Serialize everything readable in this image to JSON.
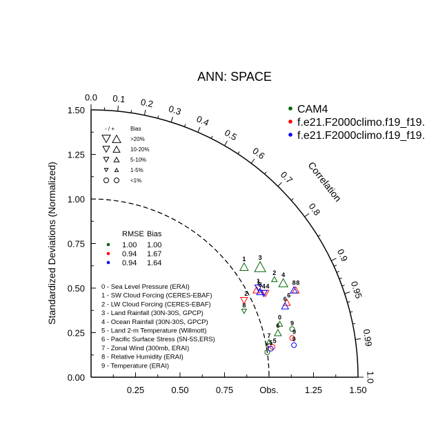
{
  "chart_data": {
    "type": "taylor-diagram",
    "title": "ANN: SPACE",
    "ylabel": "Standardized Deviations (Normalized)",
    "arc_label": "Correlation",
    "obs_label": "Obs.",
    "x_ticks": [
      "0.25",
      "0.50",
      "0.75",
      "Obs.",
      "1.25",
      "1.50"
    ],
    "x_tick_values": [
      0.25,
      0.5,
      0.75,
      1.0,
      1.25,
      1.5
    ],
    "y_ticks": [
      "0.00",
      "0.25",
      "0.50",
      "0.75",
      "1.00",
      "1.25",
      "1.50"
    ],
    "y_tick_values": [
      0,
      0.25,
      0.5,
      0.75,
      1.0,
      1.25,
      1.5
    ],
    "corr_ticks": [
      {
        "value": 0.0,
        "label": "0.0"
      },
      {
        "value": 0.1,
        "label": "0.1"
      },
      {
        "value": 0.2,
        "label": "0.2"
      },
      {
        "value": 0.3,
        "label": "0.3"
      },
      {
        "value": 0.4,
        "label": "0.4"
      },
      {
        "value": 0.5,
        "label": "0.5"
      },
      {
        "value": 0.6,
        "label": "0.6"
      },
      {
        "value": 0.7,
        "label": "0.7"
      },
      {
        "value": 0.8,
        "label": "0.8"
      },
      {
        "value": 0.9,
        "label": "0.9"
      },
      {
        "value": 0.95,
        "label": "0.95"
      },
      {
        "value": 0.99,
        "label": "0.99"
      },
      {
        "value": 1.0,
        "label": "1.0"
      }
    ],
    "corr_minor_ticks": [
      0.05,
      0.15,
      0.25,
      0.35,
      0.45,
      0.55,
      0.65,
      0.75,
      0.85,
      0.91,
      0.92,
      0.93,
      0.94,
      0.96,
      0.97,
      0.98
    ],
    "ref_arc_radius": 1.0,
    "xlim": [
      0,
      1.5
    ],
    "ylim": [
      0,
      1.5
    ],
    "series": [
      {
        "name": "CAM4",
        "color": "#006400"
      },
      {
        "name": "f.e21.F2000climo.f19_f19.",
        "color": "#ff0000"
      },
      {
        "name": "f.e21.F2000climo.f19_f19.",
        "color": "#0000ff"
      }
    ],
    "stats_table": {
      "header": [
        "RMSE",
        "Bias"
      ],
      "rows": [
        {
          "rmse": "1.00",
          "bias": "1.00"
        },
        {
          "rmse": "0.94",
          "bias": "1.67"
        },
        {
          "rmse": "0.94",
          "bias": "1.64"
        }
      ]
    },
    "bias_legend": {
      "header_sign": "- / +",
      "header_bias": "Bias",
      "rows": [
        {
          "label": ">20%",
          "shape": "triangle",
          "size": 8
        },
        {
          "label": "10-20%",
          "shape": "triangle",
          "size": 6.5
        },
        {
          "label": "5-10%",
          "shape": "triangle",
          "size": 5
        },
        {
          "label": "1-5%",
          "shape": "triangle",
          "size": 3.5
        },
        {
          "label": "<1%",
          "shape": "circle",
          "size": 3.5
        }
      ]
    },
    "variables": [
      "0 - Sea Level Pressure (ERAI)",
      "1 - SW Cloud Forcing (CERES-EBAF)",
      "2 - LW Cloud Forcing (CERES-EBAF)",
      "3 - Land Rainfall (30N-30S, GPCP)",
      "4 - Ocean Rainfall (30N-30S, GPCP)",
      "5 - Land 2-m Temperature (Willmott)",
      "6 - Pacific Surface Stress (5N-5S,ERS)",
      "7 - Zonal Wind (300mb, ERAI)",
      "8 - Relative Humidity (ERAI)",
      "9 - Temperature (ERAI)"
    ],
    "points": [
      {
        "series": 0,
        "id": "0",
        "x": 1.06,
        "y": 0.3,
        "marker": "triangle-up",
        "size": 4
      },
      {
        "series": 0,
        "id": "1",
        "x": 0.86,
        "y": 0.62,
        "marker": "triangle-up",
        "size": 6
      },
      {
        "series": 0,
        "id": "2",
        "x": 1.03,
        "y": 0.55,
        "marker": "triangle-up",
        "size": 4
      },
      {
        "series": 0,
        "id": "3",
        "x": 0.95,
        "y": 0.62,
        "marker": "triangle-up",
        "size": 8
      },
      {
        "series": 0,
        "id": "4",
        "x": 1.08,
        "y": 0.53,
        "marker": "triangle-up",
        "size": 6.5
      },
      {
        "series": 0,
        "id": "5",
        "x": 0.99,
        "y": 0.14,
        "marker": "circle",
        "size": 3.5
      },
      {
        "series": 0,
        "id": "6",
        "x": 1.05,
        "y": 0.25,
        "marker": "triangle-up",
        "size": 5
      },
      {
        "series": 0,
        "id": "7",
        "x": 1.0,
        "y": 0.2,
        "marker": "triangle-up",
        "size": 3.5
      },
      {
        "series": 0,
        "id": "8",
        "x": 0.86,
        "y": 0.37,
        "marker": "triangle-down",
        "size": 3.5
      },
      {
        "series": 0,
        "id": "9",
        "x": 1.13,
        "y": 0.27,
        "marker": "circle",
        "size": 3.5
      },
      {
        "series": 1,
        "id": "1",
        "x": 0.93,
        "y": 0.49,
        "marker": "triangle-up",
        "size": 5
      },
      {
        "series": 1,
        "id": "2",
        "x": 0.86,
        "y": 0.43,
        "marker": "triangle-down",
        "size": 5
      },
      {
        "series": 1,
        "id": "4",
        "x": 0.98,
        "y": 0.47,
        "marker": "triangle-down",
        "size": 5
      },
      {
        "series": 1,
        "id": "5",
        "x": 1.02,
        "y": 0.17,
        "marker": "circle",
        "size": 3.5
      },
      {
        "series": 1,
        "id": "6",
        "x": 1.1,
        "y": 0.42,
        "marker": "triangle-up",
        "size": 5
      },
      {
        "series": 1,
        "id": "8",
        "x": 1.15,
        "y": 0.49,
        "marker": "triangle-up",
        "size": 5
      },
      {
        "series": 1,
        "id": "9",
        "x": 1.13,
        "y": 0.22,
        "marker": "circle",
        "size": 3.5
      },
      {
        "series": 2,
        "id": "1",
        "x": 0.94,
        "y": 0.5,
        "marker": "triangle-down",
        "size": 5
      },
      {
        "series": 2,
        "id": "3",
        "x": 0.95,
        "y": 0.48,
        "marker": "triangle-up",
        "size": 5
      },
      {
        "series": 2,
        "id": "4",
        "x": 0.97,
        "y": 0.47,
        "marker": "triangle-down",
        "size": 5
      },
      {
        "series": 2,
        "id": "5",
        "x": 1.01,
        "y": 0.16,
        "marker": "circle",
        "size": 3.5
      },
      {
        "series": 2,
        "id": "6",
        "x": 1.09,
        "y": 0.4,
        "marker": "triangle-up",
        "size": 5
      },
      {
        "series": 2,
        "id": "8",
        "x": 1.14,
        "y": 0.49,
        "marker": "triangle-up",
        "size": 5
      },
      {
        "series": 2,
        "id": "9",
        "x": 1.14,
        "y": 0.18,
        "marker": "circle",
        "size": 3.5
      }
    ]
  }
}
